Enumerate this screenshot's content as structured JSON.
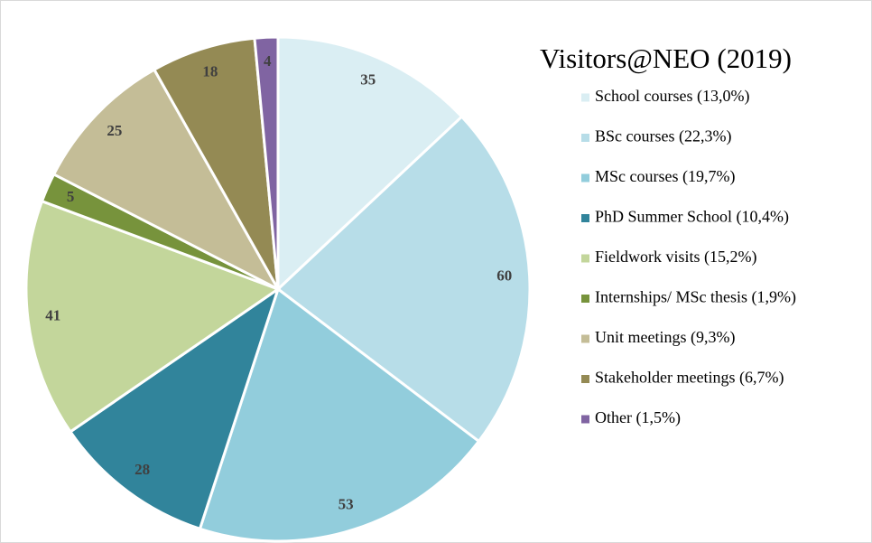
{
  "chart_data": {
    "type": "pie",
    "title": "Visitors@NEO (2019)",
    "categories": [
      "School courses (13,0%)",
      "BSc courses (22,3%)",
      "MSc courses (19,7%)",
      "PhD Summer School (10,4%)",
      "Fieldwork visits (15,2%)",
      "Internships/ MSc thesis (1,9%)",
      "Unit meetings (9,3%)",
      "Stakeholder meetings (6,7%)",
      "Other (1,5%)"
    ],
    "values": [
      35,
      60,
      53,
      28,
      41,
      5,
      25,
      18,
      4
    ],
    "colors": [
      "#daeef3",
      "#b7dde8",
      "#92cddc",
      "#31849b",
      "#c3d69b",
      "#77933c",
      "#c4bd97",
      "#948a54",
      "#8064a2"
    ],
    "legend": "right"
  }
}
